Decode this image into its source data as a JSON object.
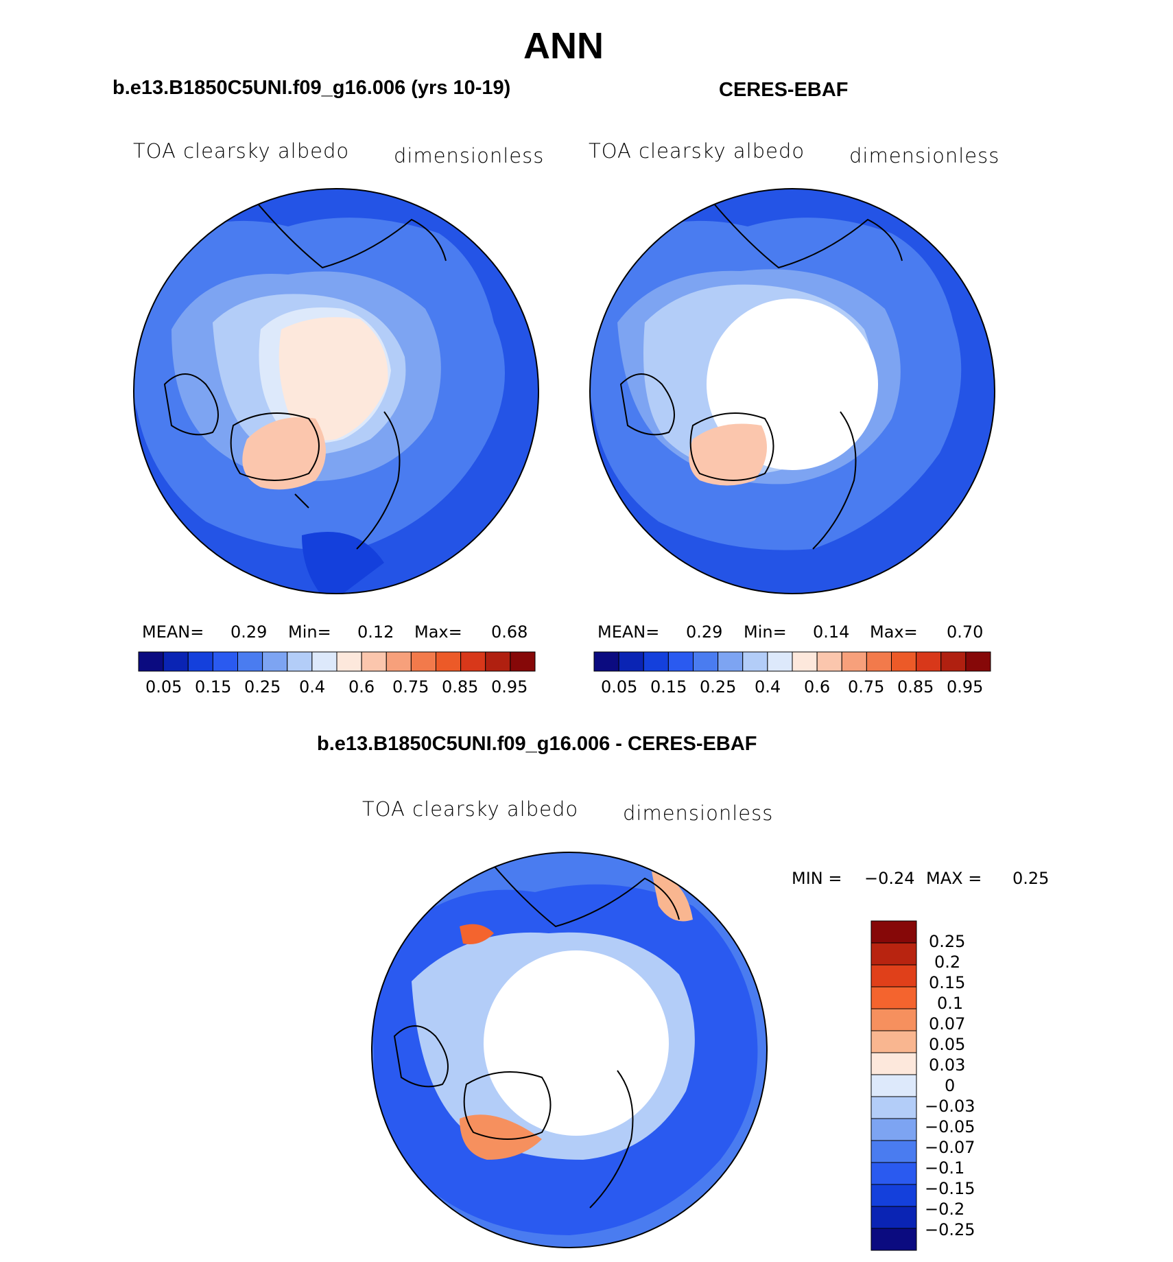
{
  "page_title": "ANN",
  "panels": [
    {
      "case_title": "b.e13.B1850C5UNI.f09_g16.006 (yrs 10-19)",
      "variable": "TOA clearsky albedo",
      "units": "dimensionless",
      "stats": {
        "mean_label": "MEAN=",
        "mean": "0.29",
        "min_label": "Min=",
        "min": "0.12",
        "max_label": "Max=",
        "max": "0.68"
      }
    },
    {
      "case_title": "CERES-EBAF",
      "variable": "TOA clearsky albedo",
      "units": "dimensionless",
      "stats": {
        "mean_label": "MEAN=",
        "mean": "0.29",
        "min_label": "Min=",
        "min": "0.14",
        "max_label": "Max=",
        "max": "0.70"
      }
    }
  ],
  "abs_colorbar": {
    "colors": [
      "#0b0b80",
      "#0a24b4",
      "#1440dc",
      "#2a5af0",
      "#4a7cf0",
      "#7da4f2",
      "#b3cdf8",
      "#dde9fb",
      "#fde8dc",
      "#fbc6ad",
      "#f7a07b",
      "#f27a4b",
      "#ec5a28",
      "#d8381a",
      "#b02010",
      "#860808"
    ],
    "tick_labels": [
      "0.05",
      "0.15",
      "0.25",
      "0.4",
      "0.6",
      "0.75",
      "0.85",
      "0.95"
    ]
  },
  "diff_panel": {
    "title": "b.e13.B1850C5UNI.f09_g16.006 - CERES-EBAF",
    "variable": "TOA clearsky albedo",
    "units": "dimensionless",
    "stats": {
      "min_label": "MIN =",
      "min": "−0.24",
      "max_label": "MAX =",
      "max": "0.25"
    }
  },
  "diff_colorbar": {
    "colors": [
      "#860808",
      "#b82410",
      "#e0401a",
      "#f4642e",
      "#f6905e",
      "#f9b690",
      "#fde8dc",
      "#dde9fb",
      "#b3cdf8",
      "#7da4f2",
      "#4a7cf0",
      "#2a5af0",
      "#1440dc",
      "#0a24b4",
      "#0b0b80"
    ],
    "tick_labels": [
      "0.25",
      "0.2",
      "0.15",
      "0.1",
      "0.07",
      "0.05",
      "0.03",
      "0",
      "−0.03",
      "−0.05",
      "−0.07",
      "−0.1",
      "−0.15",
      "−0.2",
      "−0.25"
    ]
  },
  "map_colors": {
    "ocean": "#2454e6",
    "ocean_light": "#4a7cf0",
    "land_ice": "#fde8dc",
    "ice_sheet": "#fbc6ad",
    "no_data": "#ffffff",
    "coastline": "#000000"
  }
}
